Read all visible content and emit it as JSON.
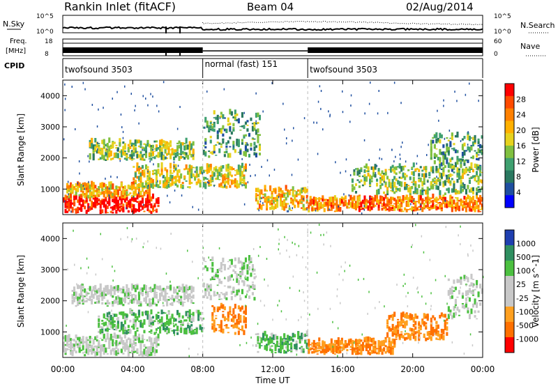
{
  "header": {
    "station": "Rankin Inlet (fitACF)",
    "beam": "Beam 04",
    "date": "02/Aug/2014"
  },
  "sky_panel": {
    "left_label": "N.Sky",
    "right_label": "N.Search",
    "ticks_left": [
      "10^5",
      "10^0"
    ],
    "ticks_right": [
      "10^5",
      "10^0"
    ]
  },
  "freq_panel": {
    "left_label_1": "Freq.",
    "left_label_2": "[MHz]",
    "right_label": "Nave",
    "ticks_left": [
      "18",
      "8"
    ],
    "ticks_right": [
      "60",
      "0"
    ]
  },
  "cpid": {
    "label": "CPID",
    "segments": [
      {
        "name": "twofsound 3503",
        "start_h": 0,
        "end_h": 8
      },
      {
        "name": "normal (fast) 151",
        "start_h": 8,
        "end_h": 14
      },
      {
        "name": "twofsound 3503",
        "start_h": 14,
        "end_h": 24
      }
    ]
  },
  "chart_data": [
    {
      "type": "heatmap",
      "panel": "power",
      "ylabel": "Slant Range [km]",
      "xlabel": "Time UT",
      "x_ticks": [
        "00:00",
        "04:00",
        "08:00",
        "12:00",
        "16:00",
        "20:00",
        "00:00"
      ],
      "y_ticks": [
        "1000",
        "2000",
        "3000",
        "4000"
      ],
      "x_range_h": [
        0,
        24
      ],
      "y_range_km": [
        180,
        4500
      ],
      "colorbar": {
        "label": "Power [dB]",
        "ticks": [
          "28",
          "24",
          "20",
          "16",
          "12",
          "8",
          "4"
        ],
        "colors": [
          "#ff0000",
          "#ff4a00",
          "#ff8000",
          "#ffb000",
          "#e6d21e",
          "#80c040",
          "#3fa070",
          "#2a7860",
          "#1f4fa0",
          "#0000ff"
        ]
      },
      "regions": [
        {
          "t0": 0,
          "t1": 5.5,
          "r0": 200,
          "r1": 700,
          "level": 9
        },
        {
          "t0": 0.2,
          "t1": 5.0,
          "r0": 700,
          "r1": 1100,
          "level": 6
        },
        {
          "t0": 1.5,
          "t1": 7.5,
          "r0": 1900,
          "r1": 2500,
          "level": 4
        },
        {
          "t0": 4.0,
          "t1": 10.5,
          "r0": 1000,
          "r1": 1700,
          "level": 5
        },
        {
          "t0": 8.0,
          "t1": 11.3,
          "r0": 2000,
          "r1": 3400,
          "level": 3
        },
        {
          "t0": 11.0,
          "t1": 14.0,
          "r0": 300,
          "r1": 950,
          "level": 6
        },
        {
          "t0": 14.0,
          "t1": 24.0,
          "r0": 250,
          "r1": 700,
          "level": 7
        },
        {
          "t0": 16.5,
          "t1": 24.0,
          "r0": 800,
          "r1": 1700,
          "level": 4
        },
        {
          "t0": 21.0,
          "t1": 24.0,
          "r0": 1500,
          "r1": 2700,
          "level": 3
        }
      ]
    },
    {
      "type": "heatmap",
      "panel": "velocity",
      "ylabel": "Slant Range [km]",
      "xlabel": "Time UT",
      "x_ticks": [
        "00:00",
        "04:00",
        "08:00",
        "12:00",
        "16:00",
        "20:00",
        "00:00"
      ],
      "y_ticks": [
        "1000",
        "2000",
        "3000",
        "4000"
      ],
      "x_range_h": [
        0,
        24
      ],
      "y_range_km": [
        180,
        4500
      ],
      "colorbar": {
        "label": "Velocity [m s^-1]",
        "ticks": [
          "1000",
          "500",
          "100",
          "25",
          "-25",
          "-100",
          "-500",
          "-1000"
        ],
        "colors": [
          "#1f3fb0",
          "#2f8f60",
          "#4cc040",
          "#c8c8c8",
          "#c8c8c8",
          "#ffa020",
          "#ff7000",
          "#ff0000"
        ]
      },
      "regions": [
        {
          "t0": 0,
          "t1": 5.5,
          "r0": 200,
          "r1": 800,
          "vel": "grey"
        },
        {
          "t0": 0.5,
          "t1": 7.5,
          "r0": 1800,
          "r1": 2400,
          "vel": "grey"
        },
        {
          "t0": 2.0,
          "t1": 8.0,
          "r0": 900,
          "r1": 1600,
          "vel": "green"
        },
        {
          "t0": 8.0,
          "t1": 11.0,
          "r0": 2000,
          "r1": 3300,
          "vel": "grey"
        },
        {
          "t0": 8.5,
          "t1": 10.5,
          "r0": 900,
          "r1": 1800,
          "vel": "orange"
        },
        {
          "t0": 11.0,
          "t1": 14.0,
          "r0": 300,
          "r1": 900,
          "vel": "green"
        },
        {
          "t0": 14.0,
          "t1": 19.0,
          "r0": 250,
          "r1": 700,
          "vel": "orange"
        },
        {
          "t0": 18.5,
          "t1": 22.0,
          "r0": 700,
          "r1": 1500,
          "vel": "orange"
        },
        {
          "t0": 22.0,
          "t1": 24.0,
          "r0": 1400,
          "r1": 2700,
          "vel": "grey"
        }
      ]
    }
  ]
}
